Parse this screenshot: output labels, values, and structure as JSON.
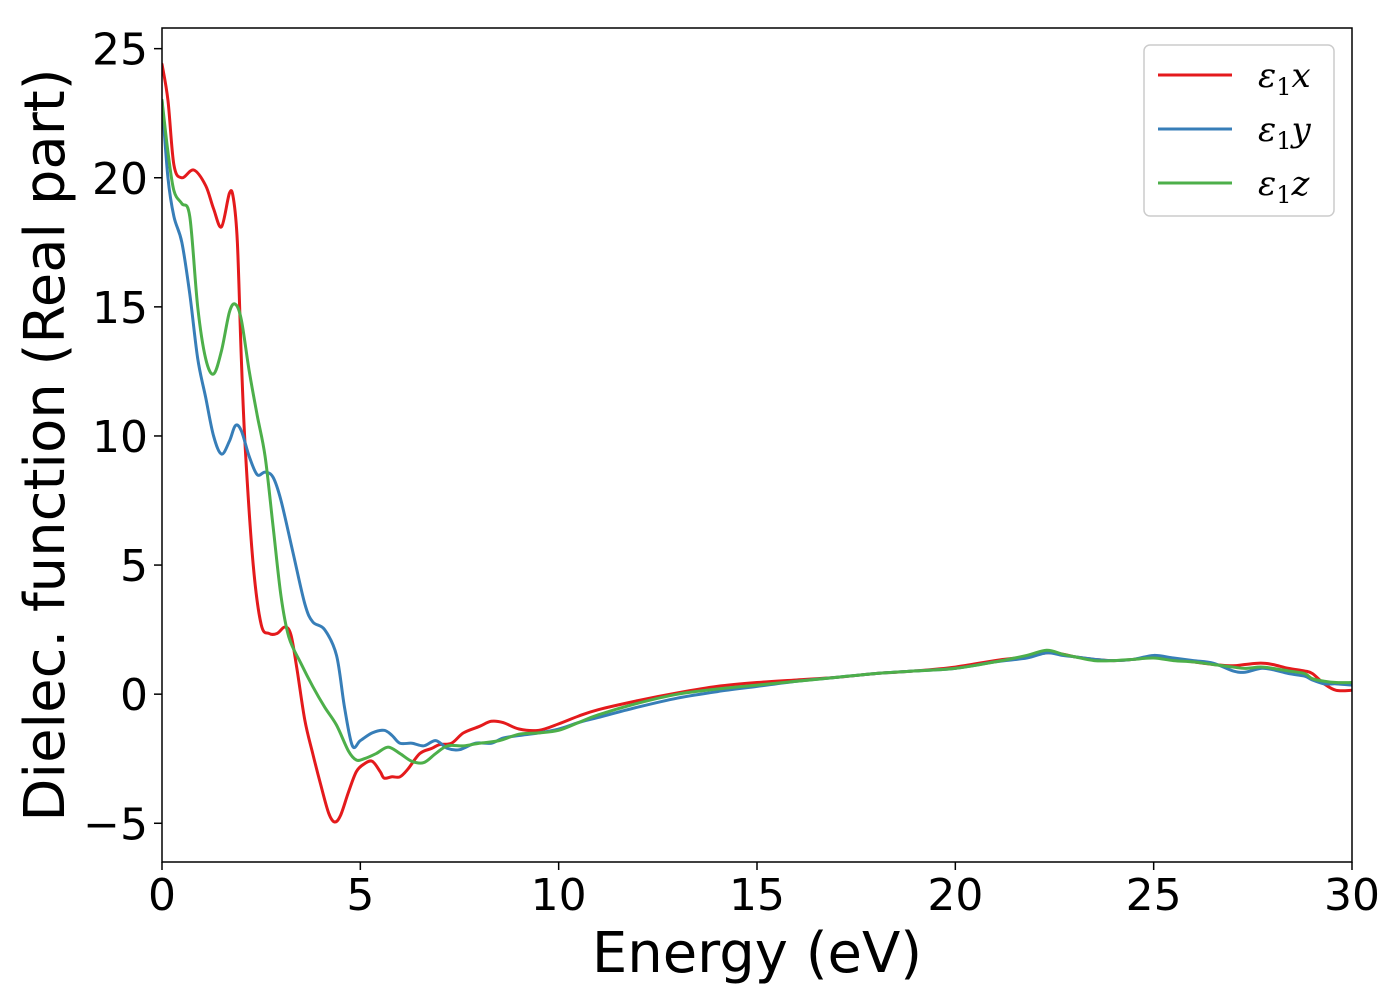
{
  "chart_data": {
    "type": "line",
    "title": "",
    "xlabel": "Energy (eV)",
    "ylabel": "Dielec. function (Real part)",
    "xlim": [
      0,
      30
    ],
    "ylim": [
      -6.5,
      25.8
    ],
    "xticks": [
      0,
      5,
      10,
      15,
      20,
      25,
      30
    ],
    "xtick_labels": [
      "0",
      "5",
      "10",
      "15",
      "20",
      "25",
      "30"
    ],
    "yticks": [
      -5,
      0,
      5,
      10,
      15,
      20,
      25
    ],
    "ytick_labels": [
      "−5",
      "0",
      "5",
      "10",
      "15",
      "20",
      "25"
    ],
    "grid": false,
    "legend": {
      "placement": "top-right",
      "entries": [
        {
          "symbol": "ε",
          "sub": "1",
          "axis": "x"
        },
        {
          "symbol": "ε",
          "sub": "1",
          "axis": "y"
        },
        {
          "symbol": "ε",
          "sub": "1",
          "axis": "z"
        }
      ]
    },
    "series": [
      {
        "name": "ε1x",
        "color": "#e41a1c",
        "x": [
          0,
          0.15,
          0.3,
          0.5,
          0.8,
          1.1,
          1.3,
          1.5,
          1.7,
          1.8,
          1.9,
          2.0,
          2.1,
          2.3,
          2.5,
          2.7,
          2.9,
          3.1,
          3.25,
          3.4,
          3.6,
          3.8,
          4.0,
          4.2,
          4.35,
          4.5,
          4.7,
          4.9,
          5.1,
          5.3,
          5.5,
          5.6,
          5.8,
          6.0,
          6.2,
          6.5,
          6.8,
          7.0,
          7.3,
          7.6,
          8.0,
          8.3,
          8.6,
          9.0,
          9.5,
          10.0,
          10.5,
          11.0,
          12.0,
          13.0,
          14.0,
          15.0,
          16.0,
          17.0,
          18.0,
          19.0,
          20.0,
          21.0,
          21.8,
          22.3,
          22.7,
          23.0,
          23.5,
          24.0,
          24.5,
          25.0,
          25.5,
          26.0,
          26.5,
          27.0,
          27.3,
          27.7,
          28.0,
          28.4,
          28.8,
          29.0,
          29.3,
          29.6,
          30.0
        ],
        "y": [
          24.4,
          23.0,
          20.5,
          20.0,
          20.3,
          19.7,
          18.8,
          18.1,
          19.4,
          19.2,
          17.5,
          13.0,
          9.5,
          5.0,
          2.7,
          2.35,
          2.35,
          2.6,
          2.3,
          1.0,
          -1.0,
          -2.3,
          -3.5,
          -4.6,
          -4.95,
          -4.7,
          -3.8,
          -3.0,
          -2.7,
          -2.6,
          -3.0,
          -3.25,
          -3.2,
          -3.2,
          -2.9,
          -2.3,
          -2.1,
          -1.95,
          -1.9,
          -1.5,
          -1.25,
          -1.05,
          -1.1,
          -1.35,
          -1.4,
          -1.15,
          -0.85,
          -0.6,
          -0.25,
          0.05,
          0.3,
          0.45,
          0.55,
          0.65,
          0.8,
          0.9,
          1.05,
          1.3,
          1.45,
          1.6,
          1.55,
          1.45,
          1.35,
          1.3,
          1.35,
          1.45,
          1.35,
          1.25,
          1.15,
          1.1,
          1.15,
          1.2,
          1.15,
          1.0,
          0.9,
          0.8,
          0.4,
          0.15,
          0.15
        ]
      },
      {
        "name": "ε1y",
        "color": "#377eb8",
        "x": [
          0,
          0.15,
          0.3,
          0.5,
          0.7,
          0.9,
          1.1,
          1.3,
          1.5,
          1.7,
          1.85,
          2.0,
          2.2,
          2.4,
          2.6,
          2.8,
          3.0,
          3.3,
          3.6,
          3.8,
          4.1,
          4.4,
          4.6,
          4.8,
          5.0,
          5.3,
          5.6,
          5.8,
          6.0,
          6.3,
          6.6,
          6.9,
          7.2,
          7.5,
          7.9,
          8.3,
          8.6,
          9.0,
          9.5,
          10.0,
          10.5,
          11.0,
          12.0,
          13.0,
          14.0,
          15.0,
          16.0,
          17.0,
          18.0,
          19.0,
          20.0,
          21.0,
          21.8,
          22.3,
          22.7,
          23.0,
          23.5,
          24.0,
          24.5,
          25.0,
          25.5,
          26.0,
          26.5,
          27.0,
          27.3,
          27.7,
          28.0,
          28.4,
          28.8,
          29.0,
          29.3,
          29.6,
          30.0
        ],
        "y": [
          23.0,
          20.0,
          18.5,
          17.5,
          15.5,
          13.0,
          11.5,
          10.0,
          9.3,
          9.8,
          10.4,
          10.2,
          9.2,
          8.5,
          8.6,
          8.4,
          7.5,
          5.5,
          3.5,
          2.8,
          2.5,
          1.5,
          -0.5,
          -2.0,
          -1.8,
          -1.5,
          -1.4,
          -1.6,
          -1.9,
          -1.9,
          -2.0,
          -1.8,
          -2.1,
          -2.15,
          -1.9,
          -1.9,
          -1.7,
          -1.6,
          -1.5,
          -1.35,
          -1.1,
          -0.9,
          -0.5,
          -0.15,
          0.1,
          0.3,
          0.5,
          0.65,
          0.8,
          0.9,
          1.0,
          1.25,
          1.4,
          1.6,
          1.5,
          1.45,
          1.35,
          1.3,
          1.35,
          1.5,
          1.4,
          1.3,
          1.2,
          0.9,
          0.85,
          1.0,
          0.95,
          0.8,
          0.7,
          0.55,
          0.4,
          0.4,
          0.35
        ]
      },
      {
        "name": "ε1z",
        "color": "#4daf4a",
        "x": [
          0,
          0.15,
          0.3,
          0.5,
          0.7,
          0.9,
          1.1,
          1.3,
          1.5,
          1.7,
          1.85,
          2.0,
          2.2,
          2.4,
          2.6,
          2.8,
          3.0,
          3.2,
          3.5,
          3.8,
          4.1,
          4.4,
          4.7,
          4.9,
          5.1,
          5.4,
          5.7,
          6.0,
          6.3,
          6.6,
          6.9,
          7.2,
          7.6,
          8.0,
          8.5,
          9.0,
          9.5,
          10.0,
          10.5,
          11.0,
          12.0,
          13.0,
          14.0,
          15.0,
          16.0,
          17.0,
          18.0,
          19.0,
          20.0,
          21.0,
          21.8,
          22.3,
          22.7,
          23.0,
          23.5,
          24.0,
          24.5,
          25.0,
          25.5,
          26.0,
          26.5,
          27.0,
          27.3,
          27.7,
          28.0,
          28.4,
          28.8,
          29.0,
          29.3,
          29.6,
          30.0
        ],
        "y": [
          23.0,
          21.0,
          19.5,
          19.0,
          18.5,
          15.0,
          13.0,
          12.4,
          13.3,
          14.8,
          15.1,
          14.5,
          12.5,
          10.8,
          9.2,
          6.5,
          3.8,
          2.2,
          1.2,
          0.3,
          -0.5,
          -1.2,
          -2.2,
          -2.55,
          -2.5,
          -2.3,
          -2.05,
          -2.3,
          -2.6,
          -2.65,
          -2.3,
          -2.0,
          -2.0,
          -1.9,
          -1.8,
          -1.55,
          -1.5,
          -1.4,
          -1.1,
          -0.8,
          -0.35,
          0.0,
          0.2,
          0.35,
          0.5,
          0.65,
          0.8,
          0.9,
          1.0,
          1.25,
          1.5,
          1.7,
          1.55,
          1.45,
          1.3,
          1.3,
          1.35,
          1.4,
          1.3,
          1.25,
          1.15,
          1.05,
          1.0,
          1.05,
          1.0,
          0.9,
          0.8,
          0.6,
          0.5,
          0.45,
          0.45
        ]
      }
    ]
  }
}
